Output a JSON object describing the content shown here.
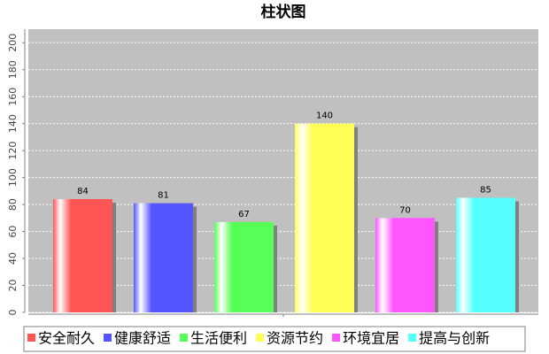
{
  "chart_data": {
    "type": "bar",
    "title": "柱状图",
    "categories": [
      null
    ],
    "series": [
      {
        "name": "安全耐久",
        "color": "#ff5555",
        "values": [
          84
        ]
      },
      {
        "name": "健康舒适",
        "color": "#5555ff",
        "values": [
          81
        ]
      },
      {
        "name": "生活便利",
        "color": "#55ff55",
        "values": [
          67
        ]
      },
      {
        "name": "资源节约",
        "color": "#ffff55",
        "values": [
          140
        ]
      },
      {
        "name": "环境宜居",
        "color": "#ff55ff",
        "values": [
          70
        ]
      },
      {
        "name": "提高与创新",
        "color": "#55ffff",
        "values": [
          85
        ]
      }
    ],
    "ylim": [
      0,
      210
    ],
    "yticks": [
      0,
      20,
      40,
      60,
      80,
      100,
      120,
      140,
      160,
      180,
      200
    ],
    "grid": true
  }
}
